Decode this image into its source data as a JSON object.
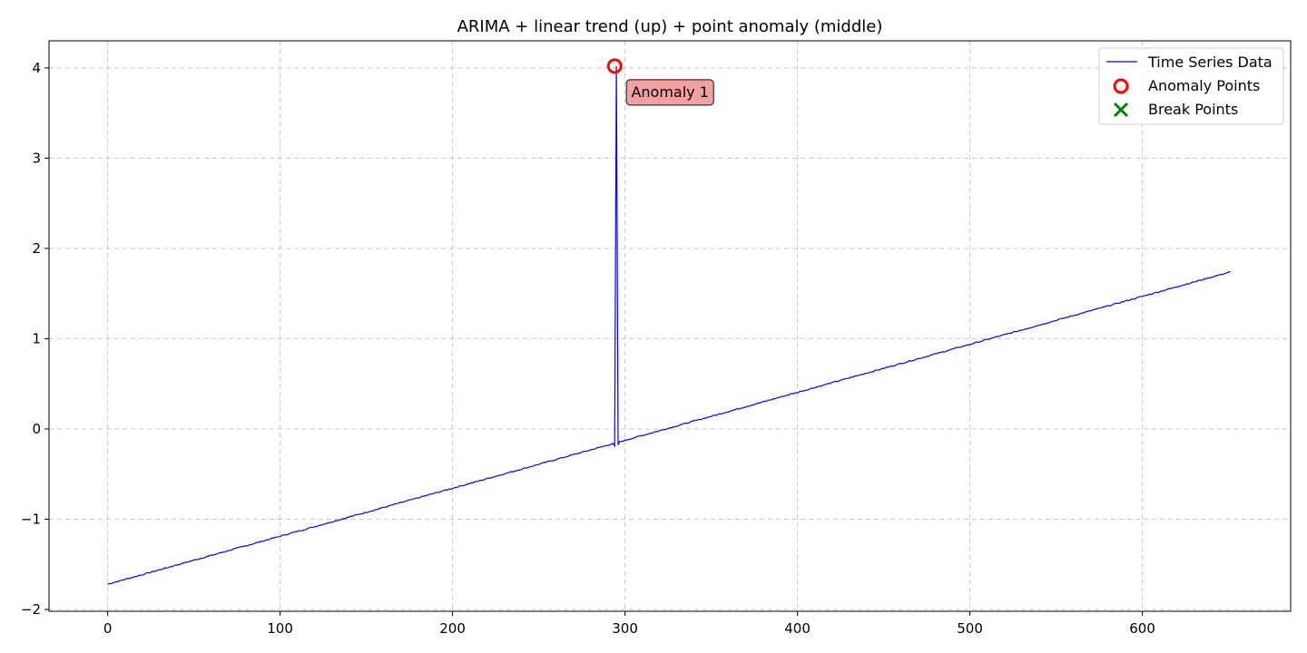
{
  "chart_data": {
    "type": "line",
    "title": "ARIMA + linear trend (up) + point anomaly (middle)",
    "xlabel": "",
    "ylabel": "",
    "xlim": [
      -34,
      686
    ],
    "ylim": [
      -2.02,
      4.3
    ],
    "x_ticks": [
      0,
      100,
      200,
      300,
      400,
      500,
      600
    ],
    "y_ticks": [
      -2,
      -1,
      0,
      1,
      2,
      3,
      4
    ],
    "y_tick_labels": [
      "−2",
      "−1",
      "0",
      "1",
      "2",
      "3",
      "4"
    ],
    "grid": true,
    "legend_position": "top-right",
    "series": [
      {
        "name": "Time Series Data",
        "color": "#0000ff",
        "trend": {
          "x_start": 0,
          "x_end": 651,
          "y_start": -1.72,
          "y_end": 1.74
        },
        "spike": {
          "x": 295,
          "y": 4.02
        }
      }
    ],
    "anomaly_points": {
      "name": "Anomaly Points",
      "color": "#ff0000",
      "points": [
        {
          "x": 294,
          "y": 4.02
        }
      ]
    },
    "break_points": {
      "name": "Break Points",
      "color": "#008000",
      "points": []
    },
    "annotations": [
      {
        "text": "Anomaly 1",
        "x": 294,
        "y": 4.02,
        "box_color": "#f4a0a0"
      }
    ]
  }
}
